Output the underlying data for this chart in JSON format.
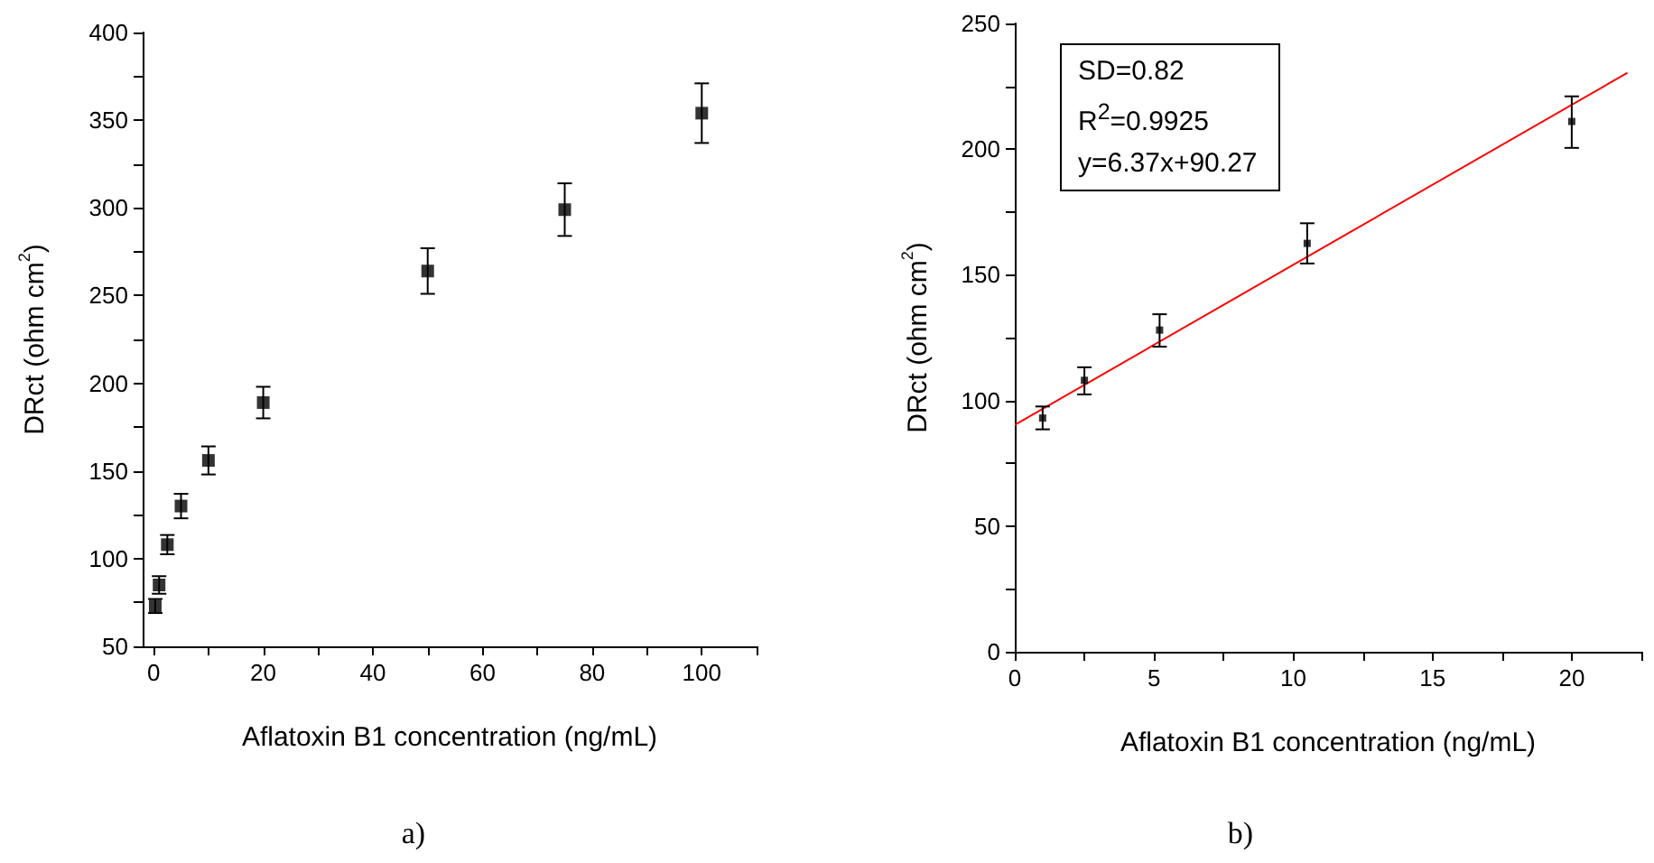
{
  "chart_data": [
    {
      "type": "scatter",
      "title": "a)",
      "xlabel": "Aflatoxin B1 concentration (ng/mL)",
      "ylabel": "DRct (ohm cm$^{2}$)",
      "xlim": [
        -2,
        110
      ],
      "xticks": [
        0,
        {
          "value": 10,
          "label": null
        },
        20,
        {
          "value": 30,
          "label": null
        },
        40,
        {
          "value": 50,
          "label": null
        },
        60,
        {
          "value": 70,
          "label": null
        },
        80,
        {
          "value": 90,
          "label": null
        },
        100,
        {
          "value": 110,
          "label": null
        }
      ],
      "ylim": [
        50,
        400
      ],
      "yticks": [
        50,
        {
          "value": 75,
          "label": null
        },
        100,
        {
          "value": 125,
          "label": null
        },
        150,
        {
          "value": 175,
          "label": null
        },
        200,
        {
          "value": 225,
          "label": null
        },
        250,
        {
          "value": 275,
          "label": null
        },
        300,
        {
          "value": 325,
          "label": null
        },
        350,
        {
          "value": 375,
          "label": null
        },
        400
      ],
      "marker": "square",
      "grid": false,
      "series": [
        {
          "color": "#000000",
          "x": [
            0.3,
            1,
            2.5,
            5,
            10,
            20,
            50,
            75,
            100
          ],
          "values": [
            73,
            85,
            108,
            130,
            156,
            189,
            264,
            299,
            354
          ],
          "errors": [
            4,
            5,
            5.5,
            7,
            8,
            9,
            13,
            15,
            17
          ]
        }
      ]
    },
    {
      "type": "scatter",
      "title": "b)",
      "xlabel": "Aflatoxin B1 concentration (ng/mL)",
      "ylabel": "DRct (ohm cm$^{2}$)",
      "annotations": [
        "SD=0.82",
        "R$^{2}$=0.9925",
        "y=6.37x+90.27"
      ],
      "xlim": [
        0,
        22.5
      ],
      "xticks": [
        0,
        {
          "value": 2.5,
          "label": null
        },
        5,
        {
          "value": 7.5,
          "label": null
        },
        10,
        {
          "value": 12.5,
          "label": null
        },
        15,
        {
          "value": 17.5,
          "label": null
        },
        20,
        {
          "value": 22.5,
          "label": null
        }
      ],
      "ylim": [
        0,
        250
      ],
      "yticks": [
        0,
        {
          "value": 25,
          "label": null
        },
        50,
        {
          "value": 75,
          "label": null
        },
        100,
        {
          "value": 125,
          "label": null
        },
        150,
        {
          "value": 175,
          "label": null
        },
        200,
        {
          "value": 225,
          "label": null
        },
        250
      ],
      "marker": "square",
      "grid": false,
      "series": [
        {
          "color": "#000000",
          "x": [
            1,
            2.5,
            5.2,
            10.5,
            20
          ],
          "values": [
            93,
            108,
            128,
            162.5,
            211
          ],
          "errors": [
            [
              88.5,
              97.6
            ],
            [
              102.4,
              113.2
            ],
            [
              121.4,
              134.3
            ],
            [
              154.5,
              170.5
            ],
            [
              200.5,
              221
            ]
          ]
        },
        {
          "type": "line",
          "color": "#ff0000",
          "x": [
            0,
            22
          ],
          "values": [
            90.3,
            230.4
          ],
          "marker": "none"
        }
      ]
    }
  ]
}
